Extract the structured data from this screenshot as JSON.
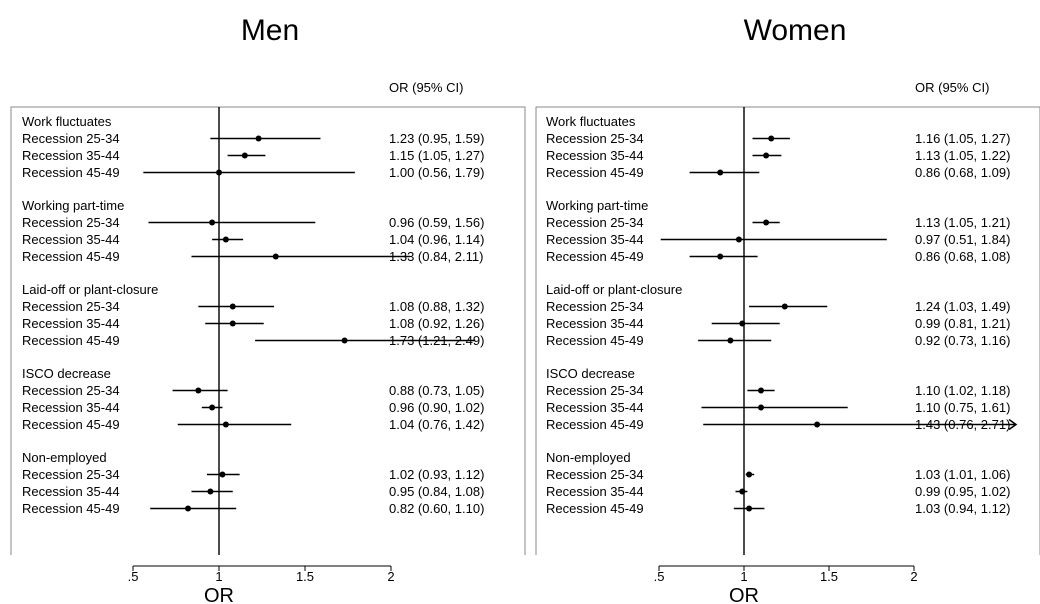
{
  "chart_data": [
    {
      "type": "forest",
      "title": "Men",
      "column_header": "OR (95% CI)",
      "xlabel": "OR",
      "xlim": [
        0.1,
        2.6
      ],
      "xticks": [
        0.5,
        1,
        1.5,
        2
      ],
      "xtick_labels": [
        ".5",
        "1",
        "1.5",
        "2"
      ],
      "reference_line": 1,
      "groups": [
        {
          "label": "Work fluctuates",
          "rows": [
            {
              "label": "Recession 25-34",
              "or": 1.23,
              "lo": 0.95,
              "hi": 1.59,
              "text": "1.23 (0.95, 1.59)"
            },
            {
              "label": "Recession 35-44",
              "or": 1.15,
              "lo": 1.05,
              "hi": 1.27,
              "text": "1.15 (1.05, 1.27)"
            },
            {
              "label": "Recession 45-49",
              "or": 1.0,
              "lo": 0.56,
              "hi": 1.79,
              "text": "1.00 (0.56, 1.79)"
            }
          ]
        },
        {
          "label": "Working part-time",
          "rows": [
            {
              "label": "Recession 25-34",
              "or": 0.96,
              "lo": 0.59,
              "hi": 1.56,
              "text": "0.96 (0.59, 1.56)"
            },
            {
              "label": "Recession 35-44",
              "or": 1.04,
              "lo": 0.96,
              "hi": 1.14,
              "text": "1.04 (0.96, 1.14)"
            },
            {
              "label": "Recession 45-49",
              "or": 1.33,
              "lo": 0.84,
              "hi": 2.11,
              "text": "1.33 (0.84, 2.11)"
            }
          ]
        },
        {
          "label": "Laid-off or plant-closure",
          "rows": [
            {
              "label": "Recession 25-34",
              "or": 1.08,
              "lo": 0.88,
              "hi": 1.32,
              "text": "1.08 (0.88, 1.32)"
            },
            {
              "label": "Recession 35-44",
              "or": 1.08,
              "lo": 0.92,
              "hi": 1.26,
              "text": "1.08 (0.92, 1.26)"
            },
            {
              "label": "Recession 45-49",
              "or": 1.73,
              "lo": 1.21,
              "hi": 2.49,
              "text": "1.73 (1.21, 2.49)"
            }
          ]
        },
        {
          "label": "ISCO decrease",
          "rows": [
            {
              "label": "Recession 25-34",
              "or": 0.88,
              "lo": 0.73,
              "hi": 1.05,
              "text": "0.88 (0.73, 1.05)"
            },
            {
              "label": "Recession 35-44",
              "or": 0.96,
              "lo": 0.9,
              "hi": 1.02,
              "text": "0.96 (0.90, 1.02)"
            },
            {
              "label": "Recession 45-49",
              "or": 1.04,
              "lo": 0.76,
              "hi": 1.42,
              "text": "1.04 (0.76, 1.42)"
            }
          ]
        },
        {
          "label": "Non-employed",
          "rows": [
            {
              "label": "Recession 25-34",
              "or": 1.02,
              "lo": 0.93,
              "hi": 1.12,
              "text": "1.02 (0.93, 1.12)"
            },
            {
              "label": "Recession 35-44",
              "or": 0.95,
              "lo": 0.84,
              "hi": 1.08,
              "text": "0.95 (0.84, 1.08)"
            },
            {
              "label": "Recession 45-49",
              "or": 0.82,
              "lo": 0.6,
              "hi": 1.1,
              "text": "0.82 (0.60, 1.10)"
            }
          ]
        }
      ]
    },
    {
      "type": "forest",
      "title": "Women",
      "column_header": "OR (95% CI)",
      "xlabel": "OR",
      "xlim": [
        0.1,
        2.6
      ],
      "xticks": [
        0.5,
        1,
        1.5,
        2
      ],
      "xtick_labels": [
        ".5",
        "1",
        "1.5",
        "2"
      ],
      "reference_line": 1,
      "groups": [
        {
          "label": "Work fluctuates",
          "rows": [
            {
              "label": "Recession 25-34",
              "or": 1.16,
              "lo": 1.05,
              "hi": 1.27,
              "text": "1.16 (1.05, 1.27)"
            },
            {
              "label": "Recession 35-44",
              "or": 1.13,
              "lo": 1.05,
              "hi": 1.22,
              "text": "1.13 (1.05, 1.22)"
            },
            {
              "label": "Recession 45-49",
              "or": 0.86,
              "lo": 0.68,
              "hi": 1.09,
              "text": "0.86 (0.68, 1.09)"
            }
          ]
        },
        {
          "label": "Working part-time",
          "rows": [
            {
              "label": "Recession 25-34",
              "or": 1.13,
              "lo": 1.05,
              "hi": 1.21,
              "text": "1.13 (1.05, 1.21)"
            },
            {
              "label": "Recession 35-44",
              "or": 0.97,
              "lo": 0.51,
              "hi": 1.84,
              "text": "0.97 (0.51, 1.84)"
            },
            {
              "label": "Recession 45-49",
              "or": 0.86,
              "lo": 0.68,
              "hi": 1.08,
              "text": "0.86 (0.68, 1.08)"
            }
          ]
        },
        {
          "label": "Laid-off or plant-closure",
          "rows": [
            {
              "label": "Recession 25-34",
              "or": 1.24,
              "lo": 1.03,
              "hi": 1.49,
              "text": "1.24 (1.03, 1.49)"
            },
            {
              "label": "Recession 35-44",
              "or": 0.99,
              "lo": 0.81,
              "hi": 1.21,
              "text": "0.99 (0.81, 1.21)"
            },
            {
              "label": "Recession 45-49",
              "or": 0.92,
              "lo": 0.73,
              "hi": 1.16,
              "text": "0.92 (0.73, 1.16)"
            }
          ]
        },
        {
          "label": "ISCO decrease",
          "rows": [
            {
              "label": "Recession 25-34",
              "or": 1.1,
              "lo": 1.02,
              "hi": 1.18,
              "text": "1.10 (1.02, 1.18)"
            },
            {
              "label": "Recession 35-44",
              "or": 1.1,
              "lo": 0.75,
              "hi": 1.61,
              "text": "1.10 (0.75, 1.61)"
            },
            {
              "label": "Recession 45-49",
              "or": 1.43,
              "lo": 0.76,
              "hi": 2.71,
              "text": "1.43 (0.76, 2.71)"
            }
          ]
        },
        {
          "label": "Non-employed",
          "rows": [
            {
              "label": "Recession 25-34",
              "or": 1.03,
              "lo": 1.01,
              "hi": 1.06,
              "text": "1.03 (1.01, 1.06)"
            },
            {
              "label": "Recession 35-44",
              "or": 0.99,
              "lo": 0.95,
              "hi": 1.02,
              "text": "0.99 (0.95, 1.02)"
            },
            {
              "label": "Recession 45-49",
              "or": 1.03,
              "lo": 0.94,
              "hi": 1.12,
              "text": "1.03 (0.94, 1.12)"
            }
          ]
        }
      ]
    }
  ]
}
